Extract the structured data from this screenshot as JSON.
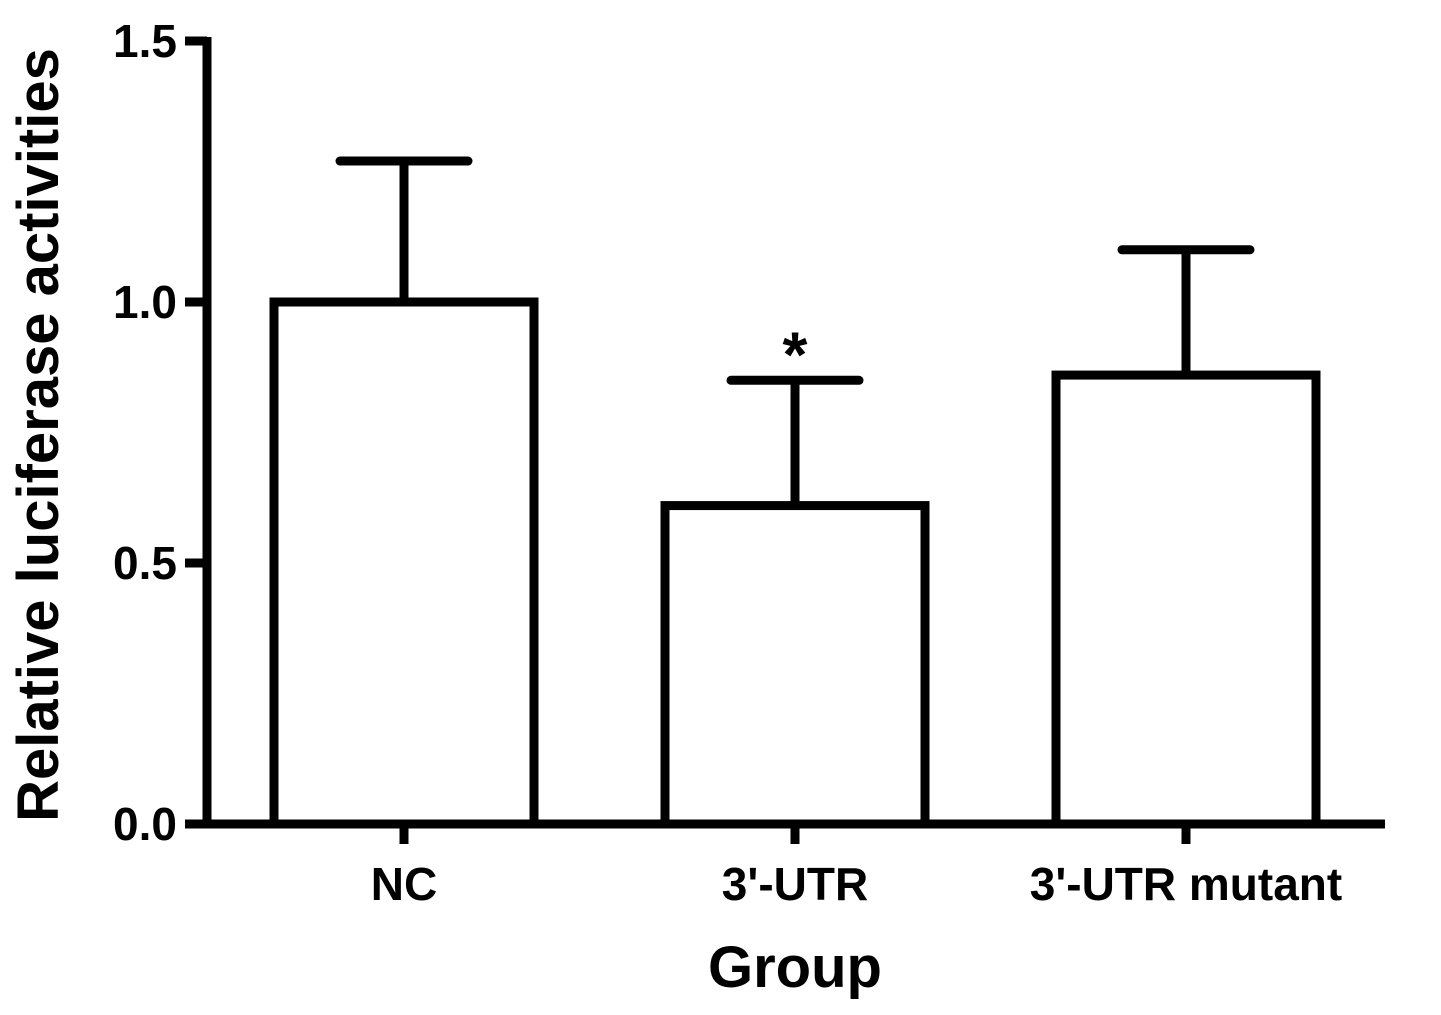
{
  "chart_data": {
    "type": "bar",
    "categories": [
      "NC",
      "3'-UTR",
      "3'-UTR mutant"
    ],
    "values": [
      1.0,
      0.61,
      0.86
    ],
    "errors": [
      0.27,
      0.24,
      0.24
    ],
    "annotations": [
      "",
      "*",
      ""
    ],
    "xlabel": "Group",
    "ylabel": "Relative luciferase activities",
    "ylim": [
      0,
      1.5
    ],
    "yticks": [
      "0.0",
      "0.5",
      "1.0",
      "1.5"
    ],
    "ytick_values": [
      0,
      0.5,
      1.0,
      1.5
    ],
    "grid": false,
    "colors": {
      "bar_fill": "#ffffff",
      "stroke": "#000000"
    }
  }
}
